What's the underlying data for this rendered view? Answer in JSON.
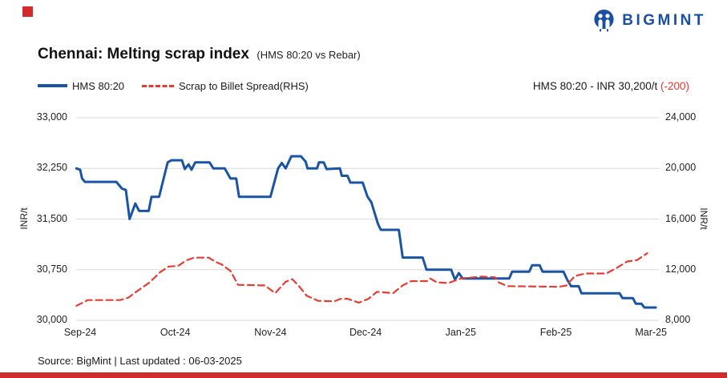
{
  "brand": {
    "logo_text": "BIGMINT",
    "blue": "#1b4fa0",
    "accent_red": "#d22b2b"
  },
  "header": {
    "title": "Chennai: Melting scrap index",
    "subtitle": "(HMS 80:20 vs Rebar)"
  },
  "legend": {
    "items": [
      {
        "label": "HMS 80:20",
        "color": "#1a55a5",
        "style": "solid"
      },
      {
        "label": "Scrap to Billet Spread(RHS)",
        "color": "#e83b32",
        "style": "dashed"
      }
    ]
  },
  "annotation": {
    "prefix": "HMS 80:20 - INR 30,200/t ",
    "change": "(-200)",
    "change_color": "#e8312e"
  },
  "footer": {
    "source": "Source: BigMint | Last updated : 06-03-2025"
  },
  "chart_data": {
    "type": "line",
    "title": "Chennai: Melting scrap index (HMS 80:20 vs Rebar)",
    "grid": true,
    "legend_position": "top-left",
    "x_ticks": [
      "Sep-24",
      "Oct-24",
      "Nov-24",
      "Dec-24",
      "Jan-25",
      "Feb-25",
      "Mar-25"
    ],
    "left_axis": {
      "label": "INR/t",
      "min": 30000,
      "max": 33000,
      "ticks": [
        "33,000",
        "32,250",
        "31,500",
        "30,750",
        "30,000"
      ]
    },
    "right_axis": {
      "label": "INR/t",
      "min": 8000,
      "max": 24000,
      "ticks": [
        "24,000",
        "20,000",
        "16,000",
        "12,000",
        "8,000"
      ]
    },
    "grid_color": "#d9d9d9",
    "series": [
      {
        "name": "HMS 80:20",
        "axis": "left",
        "color": "#1a55a5",
        "dash": false,
        "width": 3,
        "last_value": 30200,
        "points": [
          [
            -0.04,
            32250
          ],
          [
            0,
            32230
          ],
          [
            0.02,
            32100
          ],
          [
            0.05,
            32050
          ],
          [
            0.38,
            32050
          ],
          [
            0.44,
            31950
          ],
          [
            0.48,
            31930
          ],
          [
            0.52,
            31500
          ],
          [
            0.58,
            31730
          ],
          [
            0.62,
            31620
          ],
          [
            0.72,
            31620
          ],
          [
            0.75,
            31830
          ],
          [
            0.83,
            31830
          ],
          [
            0.92,
            32340
          ],
          [
            0.96,
            32370
          ],
          [
            1.07,
            32370
          ],
          [
            1.1,
            32240
          ],
          [
            1.14,
            32310
          ],
          [
            1.17,
            32230
          ],
          [
            1.21,
            32340
          ],
          [
            1.36,
            32340
          ],
          [
            1.4,
            32250
          ],
          [
            1.52,
            32250
          ],
          [
            1.58,
            32100
          ],
          [
            1.64,
            32100
          ],
          [
            1.67,
            31830
          ],
          [
            2,
            31830
          ],
          [
            2.08,
            32250
          ],
          [
            2.12,
            32330
          ],
          [
            2.16,
            32250
          ],
          [
            2.22,
            32430
          ],
          [
            2.32,
            32430
          ],
          [
            2.37,
            32350
          ],
          [
            2.39,
            32250
          ],
          [
            2.49,
            32250
          ],
          [
            2.51,
            32340
          ],
          [
            2.56,
            32340
          ],
          [
            2.59,
            32240
          ],
          [
            2.73,
            32250
          ],
          [
            2.75,
            32140
          ],
          [
            2.81,
            32140
          ],
          [
            2.84,
            32040
          ],
          [
            2.97,
            32040
          ],
          [
            3.02,
            31830
          ],
          [
            3.06,
            31750
          ],
          [
            3.13,
            31430
          ],
          [
            3.16,
            31340
          ],
          [
            3.35,
            31340
          ],
          [
            3.39,
            30930
          ],
          [
            3.6,
            30930
          ],
          [
            3.64,
            30750
          ],
          [
            3.9,
            30750
          ],
          [
            3.94,
            30600
          ],
          [
            3.98,
            30700
          ],
          [
            4.02,
            30620
          ],
          [
            4.51,
            30620
          ],
          [
            4.54,
            30720
          ],
          [
            4.72,
            30720
          ],
          [
            4.75,
            30815
          ],
          [
            4.83,
            30815
          ],
          [
            4.86,
            30720
          ],
          [
            5.08,
            30720
          ],
          [
            5.12,
            30600
          ],
          [
            5.16,
            30505
          ],
          [
            5.24,
            30505
          ],
          [
            5.27,
            30400
          ],
          [
            5.67,
            30400
          ],
          [
            5.7,
            30330
          ],
          [
            5.81,
            30330
          ],
          [
            5.84,
            30245
          ],
          [
            5.9,
            30245
          ],
          [
            5.93,
            30190
          ],
          [
            6.05,
            30190
          ]
        ]
      },
      {
        "name": "Scrap to Billet Spread(RHS)",
        "axis": "right",
        "color": "#e83b32",
        "dash": true,
        "width": 2.2,
        "points": [
          [
            -0.04,
            9150
          ],
          [
            0.08,
            9600
          ],
          [
            0.42,
            9600
          ],
          [
            0.51,
            9800
          ],
          [
            0.56,
            10100
          ],
          [
            0.73,
            11000
          ],
          [
            0.84,
            11800
          ],
          [
            0.93,
            12250
          ],
          [
            1.03,
            12300
          ],
          [
            1.12,
            12750
          ],
          [
            1.2,
            12950
          ],
          [
            1.35,
            12950
          ],
          [
            1.43,
            12600
          ],
          [
            1.49,
            12400
          ],
          [
            1.58,
            11900
          ],
          [
            1.66,
            10800
          ],
          [
            1.94,
            10760
          ],
          [
            2.05,
            10150
          ],
          [
            2.16,
            11050
          ],
          [
            2.23,
            11250
          ],
          [
            2.3,
            10700
          ],
          [
            2.38,
            9950
          ],
          [
            2.5,
            9540
          ],
          [
            2.67,
            9500
          ],
          [
            2.74,
            9700
          ],
          [
            2.81,
            9700
          ],
          [
            2.93,
            9400
          ],
          [
            3.03,
            9700
          ],
          [
            3.12,
            10250
          ],
          [
            3.29,
            10150
          ],
          [
            3.39,
            10760
          ],
          [
            3.48,
            11100
          ],
          [
            3.65,
            11100
          ],
          [
            3.68,
            11300
          ],
          [
            3.75,
            11000
          ],
          [
            3.87,
            10950
          ],
          [
            4,
            11300
          ],
          [
            4.21,
            11450
          ],
          [
            4.36,
            11400
          ],
          [
            4.4,
            11000
          ],
          [
            4.49,
            10700
          ],
          [
            5.03,
            10650
          ],
          [
            5.11,
            10750
          ],
          [
            5.2,
            11500
          ],
          [
            5.31,
            11700
          ],
          [
            5.53,
            11700
          ],
          [
            5.64,
            12150
          ],
          [
            5.75,
            12650
          ],
          [
            5.85,
            12750
          ],
          [
            5.92,
            13100
          ],
          [
            5.96,
            13300
          ]
        ]
      }
    ]
  }
}
